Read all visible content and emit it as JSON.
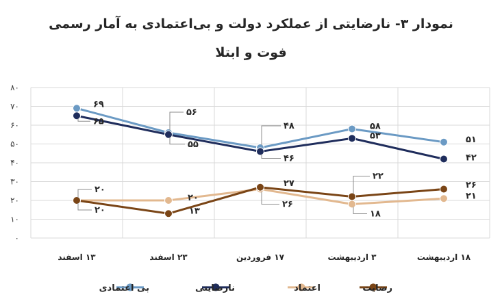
{
  "title_line_1": "نمودار ۳- نارضایتی از عملکرد دولت و بی‌اعتمادی به آمار رسمی",
  "title_line_2": "فوت و ابتلا",
  "chart_data": {
    "type": "line",
    "title": "نمودار ۳- نارضایتی از عملکرد دولت و بی‌اعتمادی به آمار رسمی فوت و ابتلا",
    "categories": [
      "۱۳ اسفند",
      "۲۳ اسفند",
      "۱۷ فروردین",
      "۳ اردیبهشت",
      "۱۸ اردیبهشت"
    ],
    "ylim": [
      0,
      80
    ],
    "y_ticks": [
      0,
      10,
      20,
      30,
      40,
      50,
      60,
      70,
      80
    ],
    "y_tick_labels": [
      "۰",
      "۱۰",
      "۲۰",
      "۳۰",
      "۴۰",
      "۵۰",
      "۶۰",
      "۷۰",
      "۸۰"
    ],
    "grid": true,
    "legend_position": "bottom",
    "series": [
      {
        "name": "بی اعتمادی",
        "color": "#6b9ac4",
        "values": [
          69,
          56,
          48,
          58,
          51
        ],
        "labels": [
          "۶۹",
          "۵۶",
          "۴۸",
          "۵۸",
          "۵۱"
        ]
      },
      {
        "name": "نارضایتی",
        "color": "#1f2d5c",
        "values": [
          65,
          55,
          46,
          53,
          42
        ],
        "labels": [
          "۶۵",
          "۵۵",
          "۴۶",
          "۵۳",
          "۴۲"
        ]
      },
      {
        "name": "اعتماد",
        "color": "#e2b88f",
        "values": [
          20,
          20,
          26,
          18,
          21
        ],
        "labels": [
          "۲۰",
          "۲۰",
          "۲۶",
          "۱۸",
          "۲۱"
        ]
      },
      {
        "name": "رضایت",
        "color": "#7a4516",
        "values": [
          20,
          13,
          27,
          22,
          26
        ],
        "labels": [
          "۲۰",
          "۱۳",
          "۲۷",
          "۲۲",
          "۲۶"
        ]
      }
    ]
  }
}
